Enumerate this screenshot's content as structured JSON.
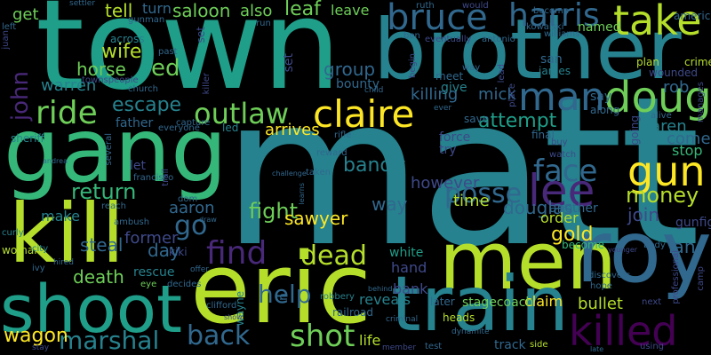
{
  "palette": {
    "background": "#000000",
    "c1": "#fde725",
    "c2": "#b5de2b",
    "c3": "#6ece58",
    "c4": "#35b779",
    "c5": "#1f9e89",
    "c6": "#26828e",
    "c7": "#31688e",
    "c8": "#3e4989",
    "c9": "#482878",
    "c10": "#440154"
  },
  "words": [
    "matt",
    "town",
    "brother",
    "gang",
    "kill",
    "eric",
    "men",
    "roy",
    "train",
    "shoot",
    "bruce",
    "harris",
    "take",
    "man",
    "doug",
    "claire",
    "outlaw",
    "lee",
    "gun",
    "ride",
    "return",
    "killed",
    "find",
    "face",
    "money",
    "go",
    "escape",
    "shot",
    "dead",
    "back",
    "help",
    "marshal",
    "posse",
    "fight",
    "bandit",
    "however",
    "attempt",
    "gold",
    "wagon",
    "sawyer",
    "death",
    "steal",
    "douglas",
    "way",
    "karen",
    "ed",
    "horse",
    "wife",
    "tell",
    "saloon",
    "also",
    "leaf",
    "leave",
    "get",
    "john",
    "warren",
    "group",
    "killing",
    "mick",
    "bounty",
    "aaron",
    "former",
    "arrives",
    "time",
    "join",
    "bullet",
    "ian",
    "come",
    "stop",
    "claim",
    "hand",
    "bank",
    "white",
    "reveals",
    "life",
    "later",
    "stagecoach",
    "track",
    "make",
    "father",
    "rob",
    "save",
    "force",
    "try",
    "order",
    "another",
    "gunfight",
    "named",
    "san",
    "james",
    "say",
    "along",
    "give",
    "meet",
    "turn",
    "across",
    "set",
    "know",
    "sheriff",
    "set",
    "led",
    "capture",
    "secret",
    "let",
    "rescue",
    "eye",
    "decides",
    "kiki",
    "day",
    "wayne",
    "n",
    "robbery",
    "railroad",
    "woman",
    "city",
    "curly",
    "ambush",
    "reach",
    "plan",
    "crime",
    "wounded",
    "rifle",
    "reward",
    "taken",
    "final",
    "buy",
    "watch",
    "going",
    "alive",
    "ruth",
    "would",
    "american",
    "eventually",
    "antonio",
    "kowalski",
    "williams",
    "ben",
    "past",
    "left",
    "juan",
    "gunman",
    "townspeople",
    "church",
    "several",
    "trail",
    "everyone",
    "francisco",
    "dom",
    "stay",
    "ivy",
    "hired",
    "offer",
    "clifford",
    "side",
    "test",
    "dynamite",
    "discovers",
    "hope",
    "using",
    "next",
    "professional",
    "camp",
    "manages",
    "village",
    "identity",
    "child",
    "ever",
    "way",
    "begin",
    "become",
    "open",
    "criminal",
    "member",
    "late",
    "body",
    "younger",
    "show",
    "draw",
    "challenge",
    "learns",
    "behind",
    "saved",
    "place",
    "lead",
    "become",
    "andrea",
    "settler",
    "run",
    "well",
    "see",
    "end",
    "killer",
    "rest",
    "heads",
    "first",
    "friend",
    "shooting"
  ]
}
